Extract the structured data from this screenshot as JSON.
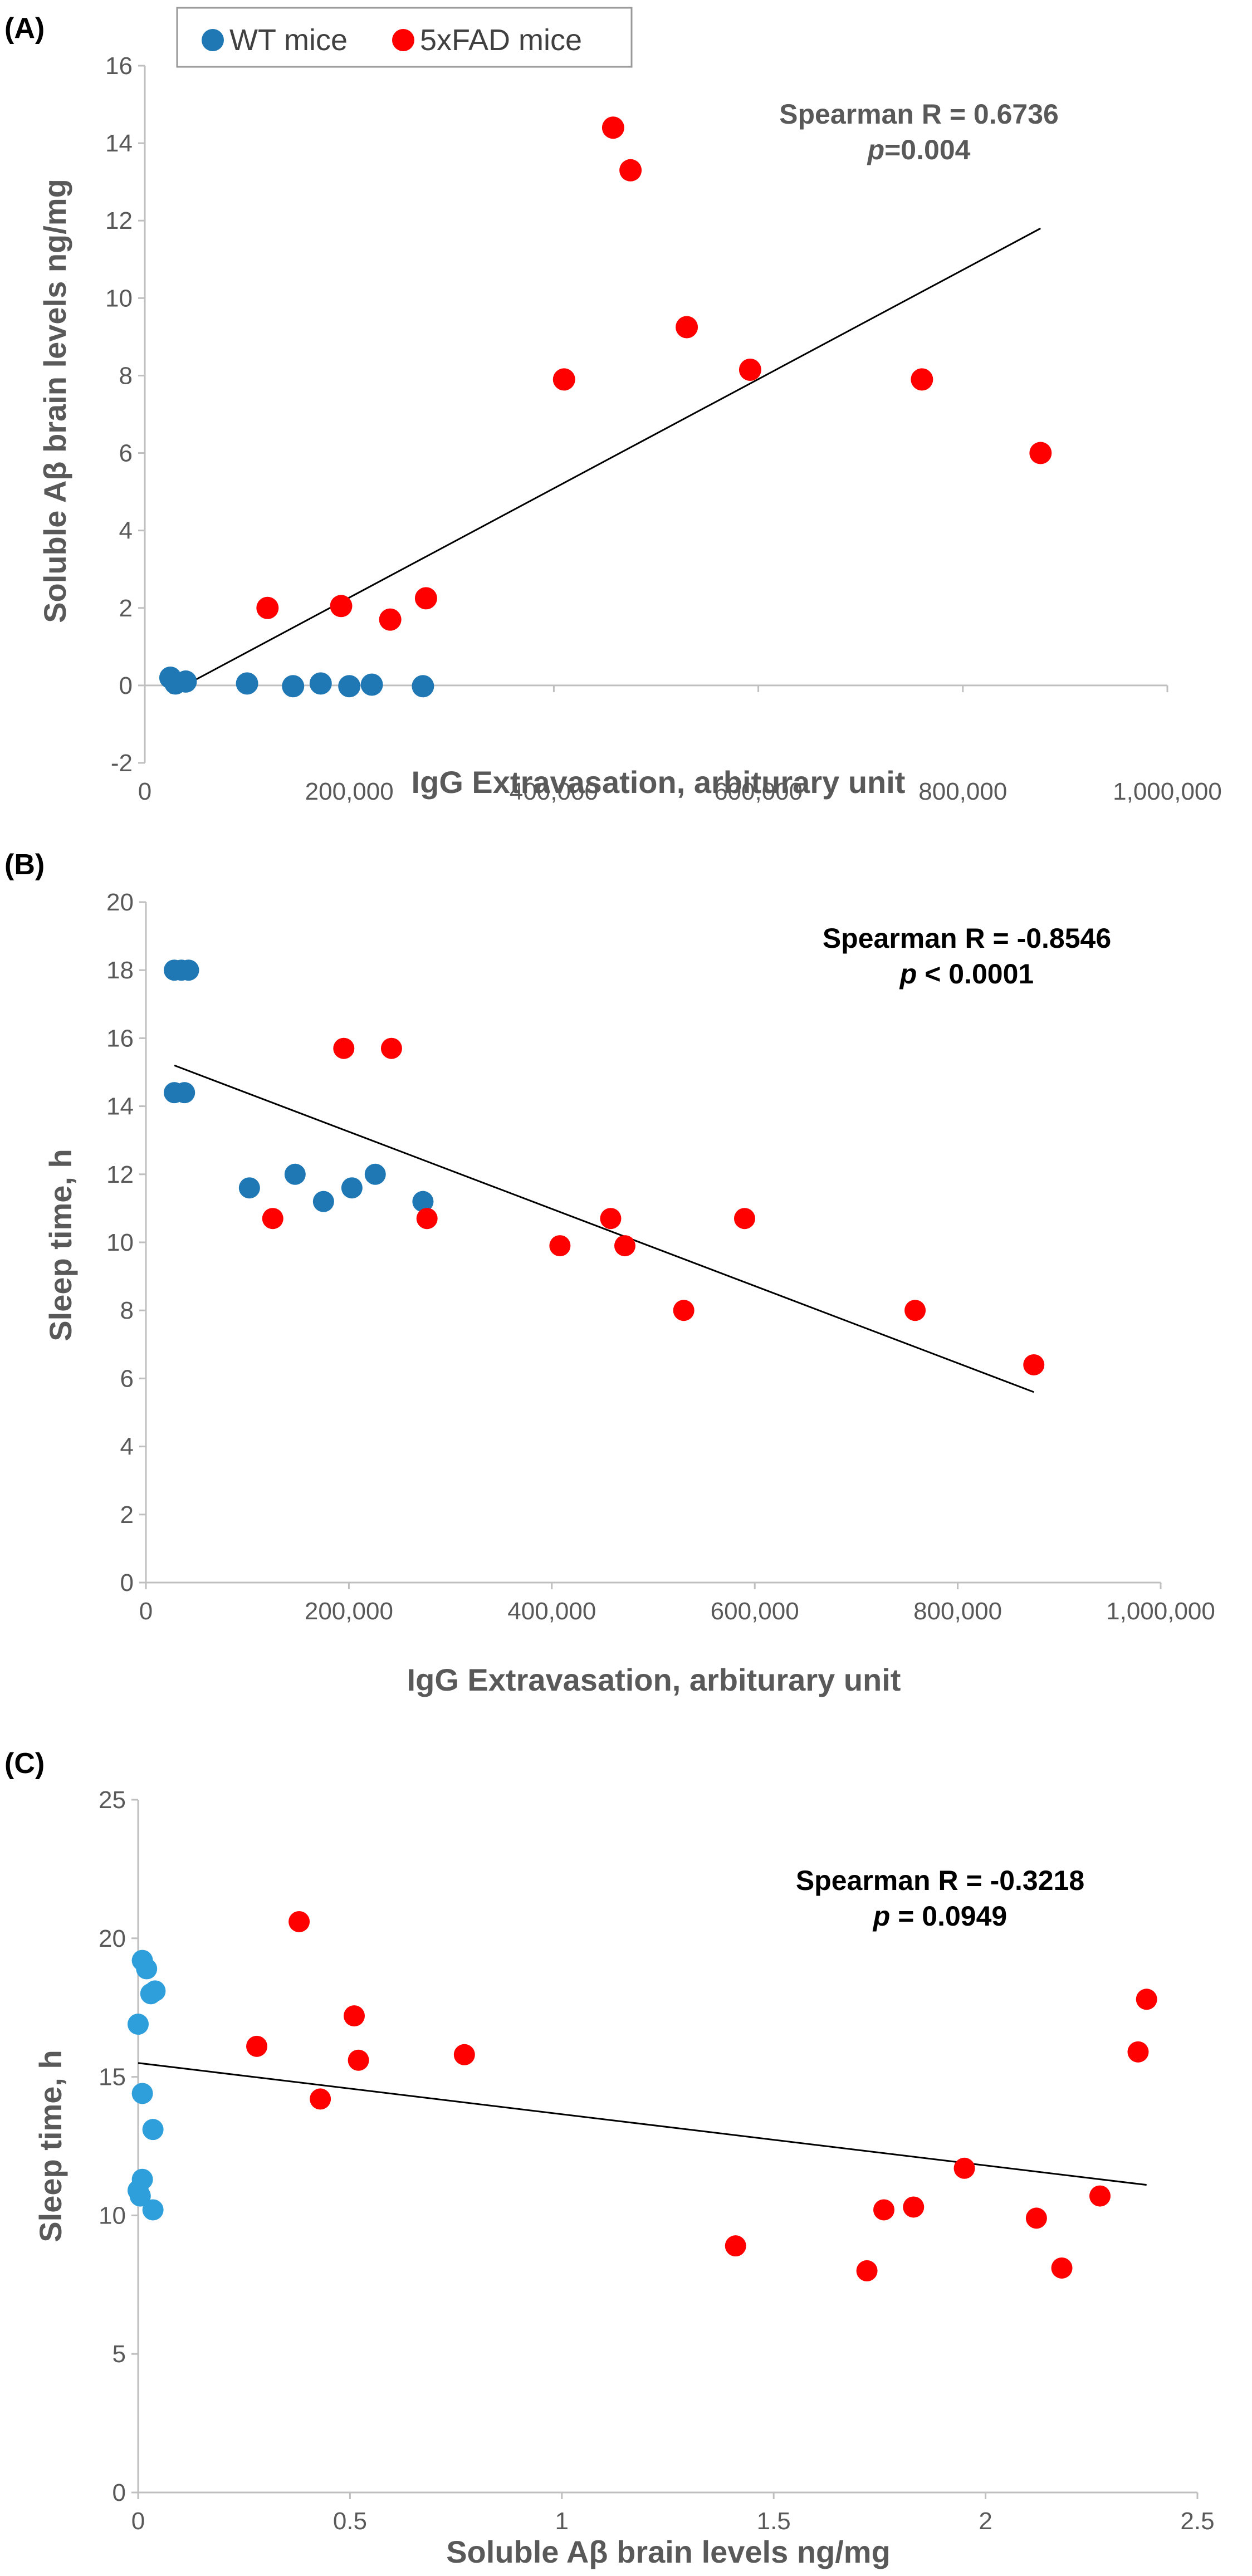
{
  "colors": {
    "wt": "#1f77b4",
    "wt_c": "#2f9fdb",
    "fad": "#ff0000",
    "axis": "#bfbfbf",
    "text": "#595959",
    "trend": "#000000"
  },
  "legend": {
    "wt_label": "WT mice",
    "fad_label": "5xFAD mice"
  },
  "chart_data": [
    {
      "type": "scatter",
      "panel_label": "(A)",
      "xlabel": "IgG Extravasation, arbiturary unit",
      "ylabel": "Soluble Aβ brain levels ng/mg",
      "xlim": [
        0,
        1000000
      ],
      "ylim": [
        -2,
        16
      ],
      "x_ticks": [
        0,
        200000,
        400000,
        600000,
        800000,
        1000000
      ],
      "x_tick_labels": [
        "0",
        "200,000",
        "400,000",
        "600,000",
        "800,000",
        "1,000,000"
      ],
      "y_ticks": [
        -2,
        0,
        2,
        4,
        6,
        8,
        10,
        12,
        14,
        16
      ],
      "y_tick_labels": [
        "-2",
        "0",
        "2",
        "4",
        "6",
        "8",
        "10",
        "12",
        "14",
        "16"
      ],
      "annotation": {
        "line1": "Spearman R = 0.6736",
        "line2_italic": "p",
        "line2_rest": "=0.004",
        "color": "#595959"
      },
      "series": [
        {
          "name": "WT mice",
          "color_key": "wt",
          "points": [
            [
              25000,
              0.2
            ],
            [
              30000,
              0.05
            ],
            [
              40000,
              0.1
            ],
            [
              100000,
              0.05
            ],
            [
              145000,
              -0.02
            ],
            [
              172000,
              0.05
            ],
            [
              200000,
              -0.02
            ],
            [
              222000,
              0.02
            ],
            [
              272000,
              -0.02
            ]
          ]
        },
        {
          "name": "5xFAD mice",
          "color_key": "fad",
          "points": [
            [
              120000,
              2.0
            ],
            [
              192000,
              2.05
            ],
            [
              240000,
              1.7
            ],
            [
              275000,
              2.25
            ],
            [
              410000,
              7.9
            ],
            [
              458000,
              14.4
            ],
            [
              475000,
              13.3
            ],
            [
              530000,
              9.25
            ],
            [
              592000,
              8.15
            ],
            [
              760000,
              7.9
            ],
            [
              876000,
              6.0
            ]
          ]
        }
      ],
      "trendline": [
        [
          25000,
          -0.2
        ],
        [
          876000,
          11.8
        ]
      ]
    },
    {
      "type": "scatter",
      "panel_label": "(B)",
      "xlabel": "IgG Extravasation, arbiturary unit",
      "ylabel": "Sleep time, h",
      "xlim": [
        0,
        1000000
      ],
      "ylim": [
        0,
        20
      ],
      "x_ticks": [
        0,
        200000,
        400000,
        600000,
        800000,
        1000000
      ],
      "x_tick_labels": [
        "0",
        "200,000",
        "400,000",
        "600,000",
        "800,000",
        "1,000,000"
      ],
      "y_ticks": [
        0,
        2,
        4,
        6,
        8,
        10,
        12,
        14,
        16,
        18,
        20
      ],
      "y_tick_labels": [
        "0",
        "2",
        "4",
        "6",
        "8",
        "10",
        "12",
        "14",
        "16",
        "18",
        "20"
      ],
      "annotation": {
        "line1": "Spearman R = -0.8546",
        "line2_italic": "p",
        "line2_rest": " < 0.0001",
        "color": "#000000"
      },
      "series": [
        {
          "name": "WT mice",
          "color_key": "wt",
          "points": [
            [
              28000,
              18
            ],
            [
              35000,
              18
            ],
            [
              42000,
              18
            ],
            [
              28000,
              14.4
            ],
            [
              38000,
              14.4
            ],
            [
              102000,
              11.6
            ],
            [
              147000,
              12
            ],
            [
              175000,
              11.2
            ],
            [
              203000,
              11.6
            ],
            [
              226000,
              12
            ],
            [
              273000,
              11.2
            ]
          ]
        },
        {
          "name": "5xFAD mice",
          "color_key": "fad",
          "points": [
            [
              125000,
              10.7
            ],
            [
              195000,
              15.7
            ],
            [
              242000,
              15.7
            ],
            [
              277000,
              10.7
            ],
            [
              408000,
              9.9
            ],
            [
              458000,
              10.7
            ],
            [
              472000,
              9.9
            ],
            [
              530000,
              8.0
            ],
            [
              590000,
              10.7
            ],
            [
              758000,
              8.0
            ],
            [
              875000,
              6.4
            ]
          ]
        }
      ],
      "trendline": [
        [
          28000,
          15.2
        ],
        [
          875000,
          5.6
        ]
      ]
    },
    {
      "type": "scatter",
      "panel_label": "(C)",
      "xlabel": "Soluble Aβ brain levels ng/mg",
      "ylabel": "Sleep time, h",
      "xlim": [
        0,
        2.5
      ],
      "ylim": [
        0,
        25
      ],
      "x_ticks": [
        0,
        0.5,
        1,
        1.5,
        2,
        2.5
      ],
      "x_tick_labels": [
        "0",
        "0.5",
        "1",
        "1.5",
        "2",
        "2.5"
      ],
      "y_ticks": [
        0,
        5,
        10,
        15,
        20,
        25
      ],
      "y_tick_labels": [
        "0",
        "5",
        "10",
        "15",
        "20",
        "25"
      ],
      "annotation": {
        "line1": "Spearman R = -0.3218",
        "line2_italic": "p",
        "line2_rest": " = 0.0949",
        "color": "#000000"
      },
      "series": [
        {
          "name": "WT mice",
          "color_key": "wt_c",
          "points": [
            [
              0.01,
              19.2
            ],
            [
              0.02,
              18.9
            ],
            [
              0.03,
              18.0
            ],
            [
              0.04,
              18.1
            ],
            [
              0.0,
              16.9
            ],
            [
              0.01,
              14.4
            ],
            [
              0.035,
              13.1
            ],
            [
              0.01,
              11.3
            ],
            [
              0.0,
              10.9
            ],
            [
              0.005,
              10.7
            ],
            [
              0.035,
              10.2
            ]
          ]
        },
        {
          "name": "5xFAD mice",
          "color_key": "fad",
          "points": [
            [
              0.28,
              16.1
            ],
            [
              0.38,
              20.6
            ],
            [
              0.43,
              14.2
            ],
            [
              0.51,
              17.2
            ],
            [
              0.52,
              15.6
            ],
            [
              0.77,
              15.8
            ],
            [
              1.41,
              8.9
            ],
            [
              1.72,
              8.0
            ],
            [
              1.76,
              10.2
            ],
            [
              1.83,
              10.3
            ],
            [
              1.95,
              11.7
            ],
            [
              2.12,
              9.9
            ],
            [
              2.18,
              8.1
            ],
            [
              2.27,
              10.7
            ],
            [
              2.36,
              15.9
            ],
            [
              2.38,
              17.8
            ]
          ]
        }
      ],
      "trendline": [
        [
          0.0,
          15.5
        ],
        [
          2.38,
          11.1
        ]
      ]
    }
  ]
}
